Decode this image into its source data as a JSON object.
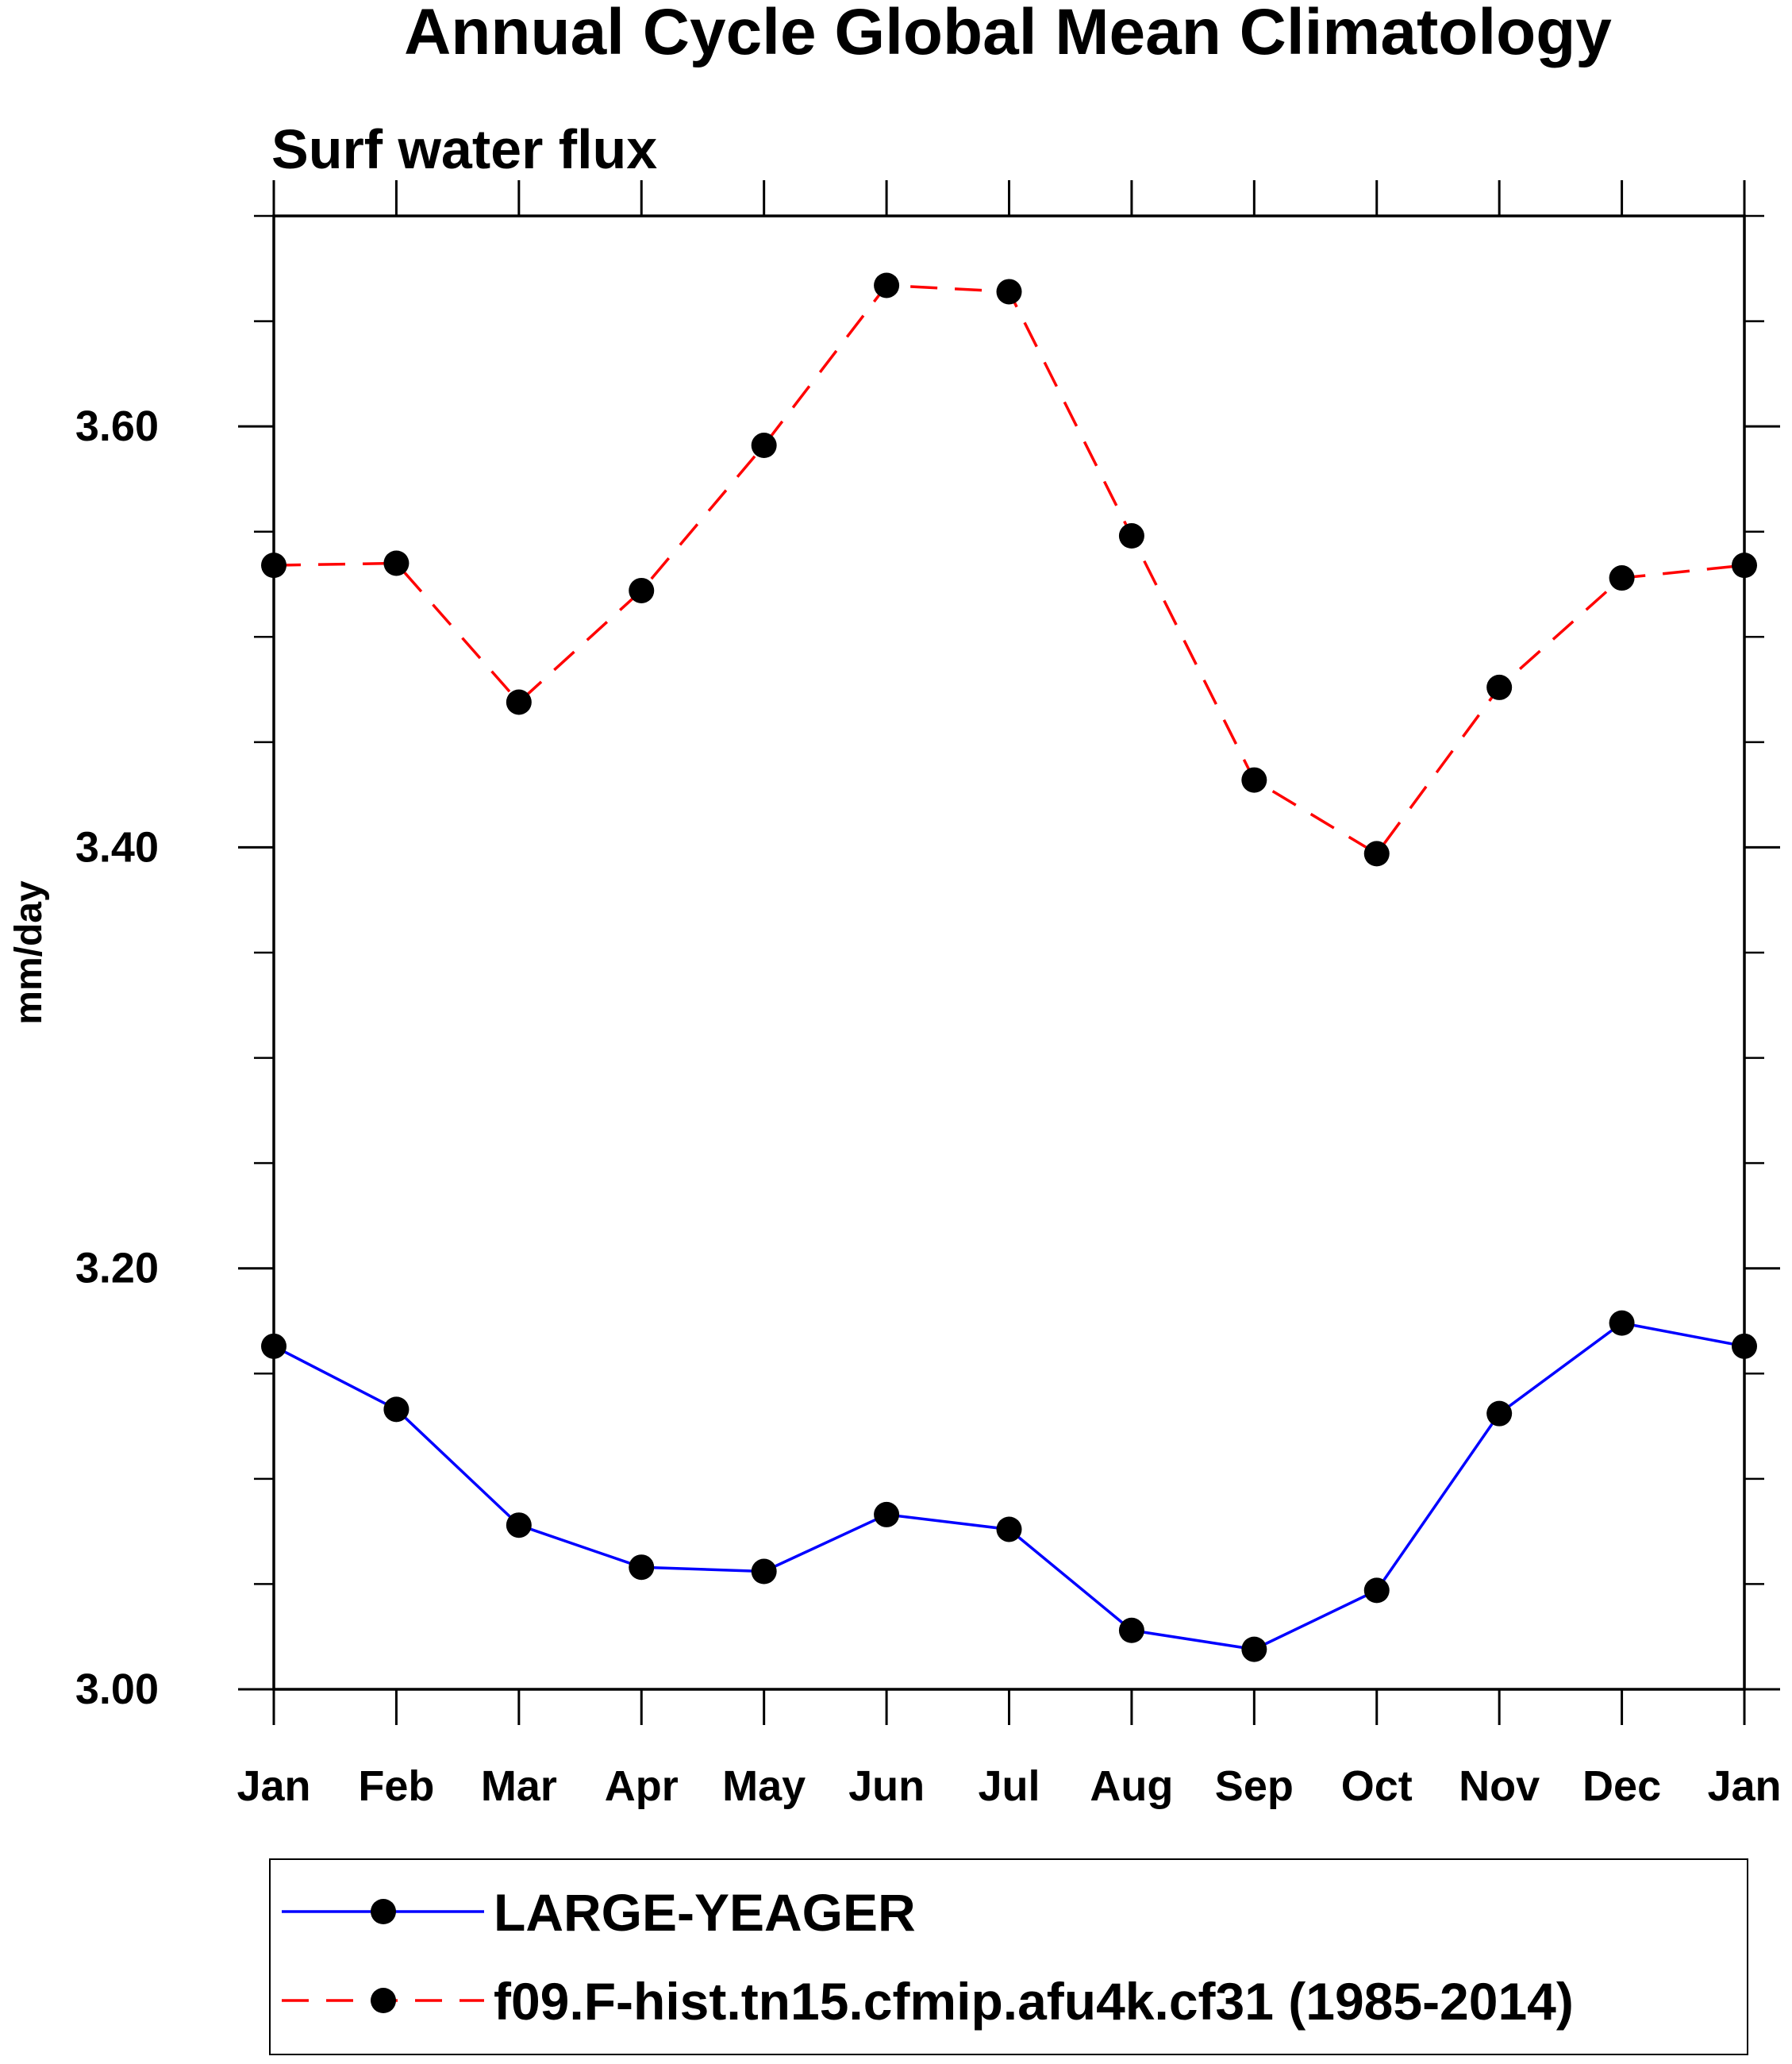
{
  "chart_data": {
    "type": "line",
    "title": "Annual Cycle Global Mean Climatology",
    "subtitle": "Surf water flux",
    "xlabel": "",
    "ylabel": "mm/day",
    "categories": [
      "Jan",
      "Feb",
      "Mar",
      "Apr",
      "May",
      "Jun",
      "Jul",
      "Aug",
      "Sep",
      "Oct",
      "Nov",
      "Dec",
      "Jan"
    ],
    "ylim": [
      3.0,
      3.7
    ],
    "yticks": [
      3.0,
      3.2,
      3.4,
      3.6
    ],
    "ytick_labels": [
      "3.00",
      "3.20",
      "3.40",
      "3.60"
    ],
    "y_minor_step": 0.05,
    "grid": false,
    "legend_position": "bottom",
    "series": [
      {
        "name": "LARGE-YEAGER",
        "color": "#0000ff",
        "line_style": "solid",
        "marker": "filled-circle",
        "values": [
          3.163,
          3.133,
          3.078,
          3.058,
          3.056,
          3.083,
          3.076,
          3.028,
          3.019,
          3.047,
          3.131,
          3.174,
          3.163
        ]
      },
      {
        "name": "f09.F-hist.tn15.cfmip.afu4k.cf31 (1985-2014)",
        "color": "#ff0000",
        "line_style": "dashed",
        "marker": "filled-circle",
        "values": [
          3.534,
          3.535,
          3.469,
          3.522,
          3.591,
          3.667,
          3.664,
          3.548,
          3.432,
          3.397,
          3.476,
          3.528,
          3.534
        ]
      }
    ]
  }
}
